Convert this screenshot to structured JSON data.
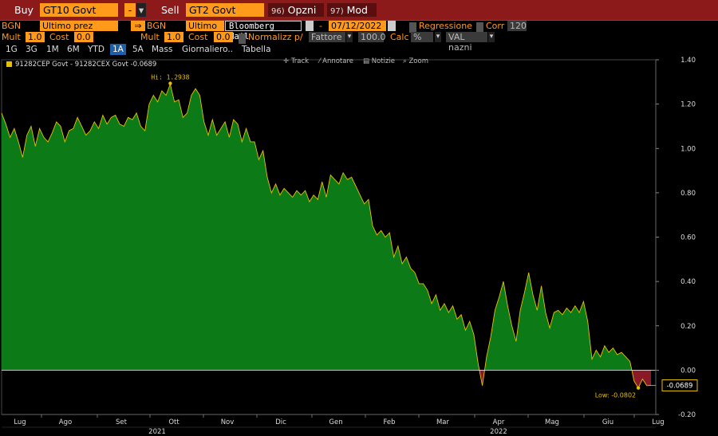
{
  "toolbar": {
    "buy_label": "Buy",
    "buy_security": "GT10 Govt",
    "sep_button": "-",
    "sell_label": "Sell",
    "sell_security": "GT2 Govt",
    "options_num": "96)",
    "options_label": "Opzni",
    "modify_num": "97)",
    "modify_label": "Mod"
  },
  "row1": {
    "source1": "BGN",
    "field1": "Ultimo prez",
    "arrow": "⇒",
    "source2": "BGN",
    "field2": "Ultimo p",
    "bloomberg_mail": "Bloomberg Mail",
    "dash": "-",
    "end_date": "07/12/2022",
    "regression_label": "Regressione",
    "corr_label": "Corr",
    "corr_value": "120"
  },
  "row2": {
    "mult1_label": "Mult",
    "mult1_value": "1.0",
    "cost1_label": "Cost",
    "cost1_value": "0.0",
    "mult2_label": "Mult",
    "mult2_value": "1.0",
    "cost2_label": "Cost",
    "cost2_value": "0.0",
    "normalize_label": "Normalizz p/",
    "factor_field": "Fattore",
    "factor_value": "100.0",
    "calc_label": "Calc",
    "calc_value": "%",
    "val_field": "VAL nazni"
  },
  "tabs": [
    "1G",
    "3G",
    "1M",
    "6M",
    "YTD",
    "1A",
    "5A",
    "Mass",
    "Giornaliero..",
    "Tabella"
  ],
  "active_tab": "1A",
  "legend": {
    "series_label": "91282CEP Govt - 91282CEX Govt -0.0689"
  },
  "chart_tools": [
    "Track",
    "Annotare",
    "Notizie",
    "Zoom"
  ],
  "colors": {
    "area_fill": "#0d7a18",
    "negative_fill": "#8a1a28",
    "line": "#e8c000",
    "top_bar": "#8c1a1a",
    "accent": "#ff9a1a"
  },
  "chart_data": {
    "type": "area",
    "x_labels": [
      "Lug",
      "Ago",
      "Set",
      "Ott",
      "Nov",
      "Dic",
      "Gen",
      "Feb",
      "Mar",
      "Apr",
      "Mag",
      "Giu",
      "Lug"
    ],
    "year_labels": [
      "2021",
      "2022"
    ],
    "y_ticks": [
      "1.40",
      "1.20",
      "1.00",
      "0.80",
      "0.60",
      "0.40",
      "0.20",
      "0.00",
      "-0.20"
    ],
    "ylim": [
      -0.2,
      1.4
    ],
    "hi_label": "Hi: 1.2938",
    "low_label": "Low: -0.0802",
    "last_label": "-0.0689",
    "values": [
      1.16,
      1.11,
      1.05,
      1.09,
      1.03,
      0.96,
      1.06,
      1.1,
      1.01,
      1.09,
      1.05,
      1.03,
      1.07,
      1.12,
      1.1,
      1.03,
      1.08,
      1.09,
      1.14,
      1.1,
      1.06,
      1.08,
      1.12,
      1.09,
      1.15,
      1.11,
      1.14,
      1.15,
      1.11,
      1.1,
      1.14,
      1.13,
      1.16,
      1.1,
      1.08,
      1.2,
      1.24,
      1.21,
      1.26,
      1.24,
      1.29,
      1.21,
      1.22,
      1.14,
      1.16,
      1.24,
      1.27,
      1.24,
      1.12,
      1.06,
      1.13,
      1.06,
      1.09,
      1.12,
      1.05,
      1.13,
      1.11,
      1.03,
      1.09,
      1.03,
      1.03,
      0.95,
      0.99,
      0.87,
      0.8,
      0.84,
      0.79,
      0.82,
      0.8,
      0.78,
      0.81,
      0.79,
      0.81,
      0.76,
      0.79,
      0.77,
      0.85,
      0.78,
      0.88,
      0.86,
      0.84,
      0.89,
      0.86,
      0.87,
      0.83,
      0.79,
      0.75,
      0.77,
      0.65,
      0.61,
      0.63,
      0.6,
      0.62,
      0.51,
      0.56,
      0.48,
      0.51,
      0.46,
      0.44,
      0.39,
      0.39,
      0.36,
      0.3,
      0.34,
      0.27,
      0.3,
      0.26,
      0.29,
      0.23,
      0.25,
      0.18,
      0.22,
      0.16,
      0.03,
      -0.07,
      0.06,
      0.15,
      0.27,
      0.33,
      0.4,
      0.29,
      0.2,
      0.13,
      0.27,
      0.35,
      0.44,
      0.34,
      0.27,
      0.38,
      0.26,
      0.19,
      0.26,
      0.27,
      0.25,
      0.28,
      0.26,
      0.29,
      0.26,
      0.31,
      0.22,
      0.05,
      0.09,
      0.06,
      0.11,
      0.08,
      0.1,
      0.07,
      0.08,
      0.06,
      0.04,
      -0.05,
      -0.08,
      -0.04,
      -0.07,
      -0.0689
    ]
  }
}
